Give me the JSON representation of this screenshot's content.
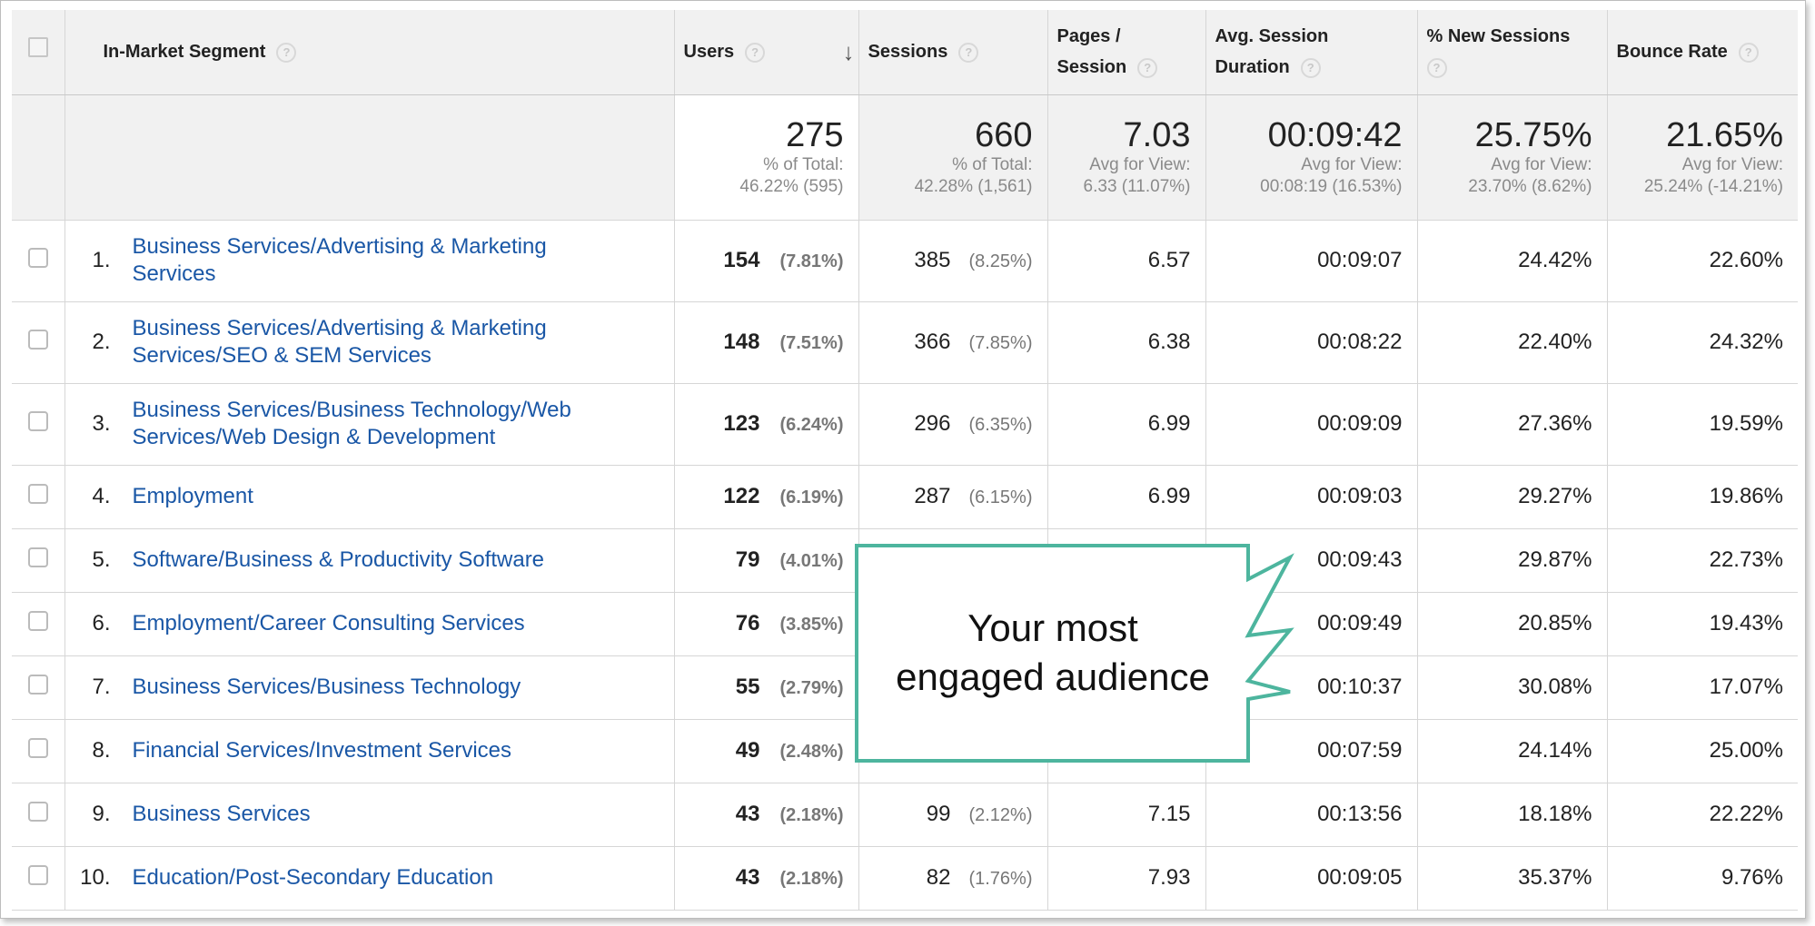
{
  "columns": {
    "segment": "In-Market Segment",
    "users": "Users",
    "sessions": "Sessions",
    "pages_line1": "Pages /",
    "pages_line2": "Session",
    "duration_line1": "Avg. Session",
    "duration_line2": "Duration",
    "new_sessions": "% New Sessions",
    "bounce": "Bounce Rate",
    "help_glyph": "?",
    "sort_glyph": "↓"
  },
  "totals": {
    "users": {
      "value": "275",
      "l1": "% of Total:",
      "l2": "46.22% (595)"
    },
    "sessions": {
      "value": "660",
      "l1": "% of Total:",
      "l2": "42.28% (1,561)"
    },
    "pages": {
      "value": "7.03",
      "l1": "Avg for View:",
      "l2": "6.33 (11.07%)"
    },
    "duration": {
      "value": "00:09:42",
      "l1": "Avg for View:",
      "l2": "00:08:19 (16.53%)"
    },
    "new_sessions": {
      "value": "25.75%",
      "l1": "Avg for View:",
      "l2": "23.70% (8.62%)"
    },
    "bounce": {
      "value": "21.65%",
      "l1": "Avg for View:",
      "l2": "25.24% (-14.21%)"
    }
  },
  "rows": [
    {
      "idx": "1.",
      "segment": "Business Services/Advertising & Marketing Services",
      "users": "154",
      "users_pct": "(7.81%)",
      "sessions": "385",
      "sessions_pct": "(8.25%)",
      "pages": "6.57",
      "duration": "00:09:07",
      "new_sessions": "24.42%",
      "bounce": "22.60%"
    },
    {
      "idx": "2.",
      "segment": "Business Services/Advertising & Marketing Services/SEO & SEM Services",
      "users": "148",
      "users_pct": "(7.51%)",
      "sessions": "366",
      "sessions_pct": "(7.85%)",
      "pages": "6.38",
      "duration": "00:08:22",
      "new_sessions": "22.40%",
      "bounce": "24.32%"
    },
    {
      "idx": "3.",
      "segment": "Business Services/Business Technology/Web Services/Web Design & Development",
      "users": "123",
      "users_pct": "(6.24%)",
      "sessions": "296",
      "sessions_pct": "(6.35%)",
      "pages": "6.99",
      "duration": "00:09:09",
      "new_sessions": "27.36%",
      "bounce": "19.59%"
    },
    {
      "idx": "4.",
      "segment": "Employment",
      "users": "122",
      "users_pct": "(6.19%)",
      "sessions": "287",
      "sessions_pct": "(6.15%)",
      "pages": "6.99",
      "duration": "00:09:03",
      "new_sessions": "29.27%",
      "bounce": "19.86%"
    },
    {
      "idx": "5.",
      "segment": "Software/Business & Productivity Software",
      "users": "79",
      "users_pct": "(4.01%)",
      "sessions": "",
      "sessions_pct": "",
      "pages": "",
      "duration": "00:09:43",
      "new_sessions": "29.87%",
      "bounce": "22.73%"
    },
    {
      "idx": "6.",
      "segment": "Employment/Career Consulting Services",
      "users": "76",
      "users_pct": "(3.85%)",
      "sessions": "",
      "sessions_pct": "",
      "pages": "",
      "duration": "00:09:49",
      "new_sessions": "20.85%",
      "bounce": "19.43%"
    },
    {
      "idx": "7.",
      "segment": "Business Services/Business Technology",
      "users": "55",
      "users_pct": "(2.79%)",
      "sessions": "",
      "sessions_pct": "",
      "pages": "",
      "duration": "00:10:37",
      "new_sessions": "30.08%",
      "bounce": "17.07%"
    },
    {
      "idx": "8.",
      "segment": "Financial Services/Investment Services",
      "users": "49",
      "users_pct": "(2.48%)",
      "sessions": "",
      "sessions_pct": "",
      "pages": "",
      "duration": "00:07:59",
      "new_sessions": "24.14%",
      "bounce": "25.00%"
    },
    {
      "idx": "9.",
      "segment": "Business Services",
      "users": "43",
      "users_pct": "(2.18%)",
      "sessions": "99",
      "sessions_pct": "(2.12%)",
      "pages": "7.15",
      "duration": "00:13:56",
      "new_sessions": "18.18%",
      "bounce": "22.22%"
    },
    {
      "idx": "10.",
      "segment": "Education/Post-Secondary Education",
      "users": "43",
      "users_pct": "(2.18%)",
      "sessions": "82",
      "sessions_pct": "(1.76%)",
      "pages": "7.93",
      "duration": "00:09:05",
      "new_sessions": "35.37%",
      "bounce": "9.76%"
    }
  ],
  "callout": {
    "line1": "Your most",
    "line2": "engaged audience",
    "border_color": "#4db59e"
  },
  "colors": {
    "link": "#1a57a6",
    "header_bg": "#f1f1f1"
  }
}
